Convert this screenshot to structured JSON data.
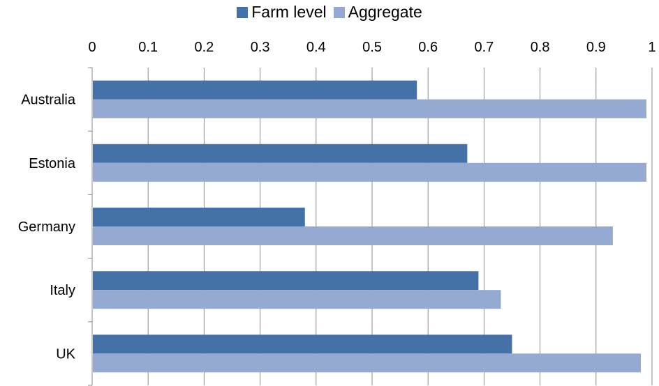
{
  "chart_data": {
    "type": "bar",
    "orientation": "horizontal",
    "categories": [
      "Australia",
      "Estonia",
      "Germany",
      "Italy",
      "UK"
    ],
    "series": [
      {
        "name": "Farm level",
        "color": "#4472a8",
        "values": [
          0.58,
          0.67,
          0.38,
          0.69,
          0.75
        ]
      },
      {
        "name": "Aggregate",
        "color": "#95aad3",
        "values": [
          0.99,
          0.99,
          0.93,
          0.73,
          0.98
        ]
      }
    ],
    "xlim": [
      0,
      1
    ],
    "xticks": [
      "0",
      "0.1",
      "0.2",
      "0.3",
      "0.4",
      "0.5",
      "0.6",
      "0.7",
      "0.8",
      "0.9",
      "1"
    ],
    "x_axis_position": "top",
    "grid": "vertical",
    "legend_position": "top"
  }
}
